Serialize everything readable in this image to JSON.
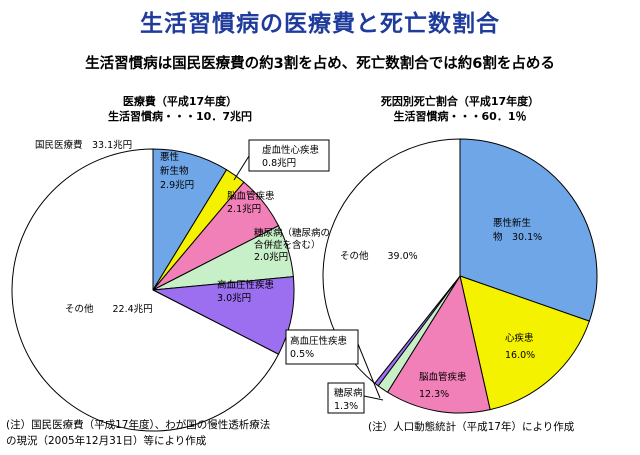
{
  "title": "生活習慣病の医療費と死亡数割合",
  "subtitle": "生活習慣病は国民医療費の約3割を占め、死亡数割合では約6割を占める",
  "colors": {
    "title": "#1f3c9c",
    "cancer": "#6fa6e8",
    "heart": "#f5f200",
    "cerebro": "#f280b8",
    "diabetes": "#c8f0c8",
    "hypertension": "#9b6ff0",
    "other": "#ffffff"
  },
  "left": {
    "chart_title": "医療費（平成17年度）",
    "chart_summary": "生活習慣病・・・10．7兆円",
    "total_label": "国民医療費　33.1兆円",
    "note_line1": "(注）国民医療費（平成17年度）、わが国の慢性透析療法",
    "note_line2": "の現況（2005年12月31日）等により作成"
  },
  "right": {
    "chart_title": "死因別死亡割合（平成17年度）",
    "chart_summary": "生活習慣病・・・60．1％",
    "note": "(注）人口動態統計（平成17年）により作成"
  },
  "chart_data": [
    {
      "type": "pie",
      "title": "医療費（平成17年度）",
      "unit": "兆円",
      "total": 33.1,
      "slices": [
        {
          "name": "悪性新生物",
          "value": 2.9,
          "label_lines": [
            "悪性",
            "新生物",
            "2.9兆円"
          ]
        },
        {
          "name": "虚血性心疾患",
          "value": 0.8,
          "label_lines": [
            "虚血性心疾患",
            "0.8兆円"
          ]
        },
        {
          "name": "脳血管疾患",
          "value": 2.1,
          "label_lines": [
            "脳血管疾患",
            "2.1兆円"
          ]
        },
        {
          "name": "糖尿病（糖尿病の合併症を含む）",
          "value": 2.0,
          "label_lines": [
            "糖尿病（糖尿病の",
            "合併症を含む）",
            "2.0兆円"
          ]
        },
        {
          "name": "高血圧性疾患",
          "value": 3.0,
          "label_lines": [
            "高血圧性疾患",
            "3.0兆円"
          ]
        },
        {
          "name": "その他",
          "value": 22.4,
          "label_lines": [
            "その他　　22.4兆円"
          ]
        }
      ]
    },
    {
      "type": "pie",
      "title": "死因別死亡割合（平成17年度）",
      "unit": "%",
      "slices": [
        {
          "name": "悪性新生物",
          "value": 30.1,
          "label_lines": [
            "悪性新生",
            "物　30.1%"
          ]
        },
        {
          "name": "心疾患",
          "value": 16.0,
          "label_lines": [
            "心疾患",
            "16.0%"
          ]
        },
        {
          "name": "脳血管疾患",
          "value": 12.3,
          "label_lines": [
            "脳血管疾患",
            "12.3%"
          ]
        },
        {
          "name": "糖尿病",
          "value": 1.3,
          "label_lines": [
            "糖尿病",
            "1.3%"
          ]
        },
        {
          "name": "高血圧性疾患",
          "value": 0.5,
          "label_lines": [
            "高血圧性疾患",
            "0.5%"
          ]
        },
        {
          "name": "その他",
          "value": 39.0,
          "label_lines": [
            "その他　　39.0%"
          ]
        }
      ]
    }
  ]
}
